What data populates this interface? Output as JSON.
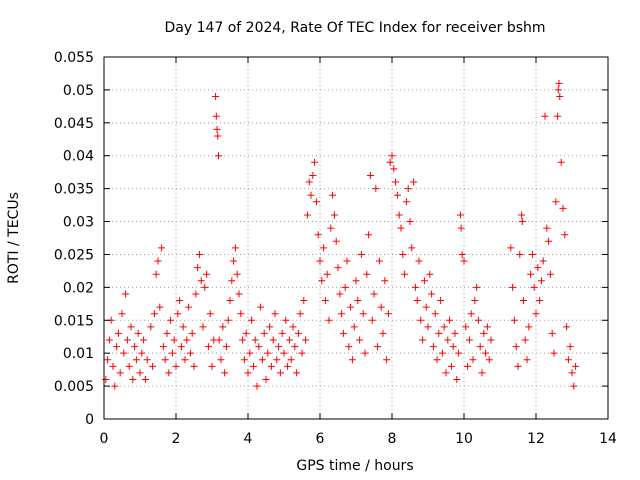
{
  "chart_data": {
    "type": "scatter",
    "title": "Day 147 of 2024, Rate Of TEC Index for receiver bshm",
    "xlabel": "GPS time / hours",
    "ylabel": "ROTI / TECUs",
    "xlim": [
      0,
      14
    ],
    "ylim": [
      0,
      0.055
    ],
    "xticks": [
      0,
      2,
      4,
      6,
      8,
      10,
      12,
      14
    ],
    "xtick_labels": [
      "0",
      "2",
      "4",
      "6",
      "8",
      "10",
      "12",
      "14"
    ],
    "yticks": [
      0,
      0.005,
      0.01,
      0.015,
      0.02,
      0.025,
      0.03,
      0.035,
      0.04,
      0.045,
      0.05,
      0.055
    ],
    "ytick_labels": [
      "0",
      "0.005",
      "0.01",
      "0.015",
      "0.02",
      "0.025",
      "0.03",
      "0.035",
      "0.04",
      "0.045",
      "0.05",
      "0.055"
    ],
    "grid": true,
    "marker": "+",
    "color": "#ff0000",
    "series": [
      {
        "name": "ROTI",
        "points": [
          [
            0.05,
            0.006
          ],
          [
            0.1,
            0.009
          ],
          [
            0.15,
            0.012
          ],
          [
            0.2,
            0.015
          ],
          [
            0.25,
            0.008
          ],
          [
            0.3,
            0.005
          ],
          [
            0.35,
            0.011
          ],
          [
            0.4,
            0.013
          ],
          [
            0.45,
            0.007
          ],
          [
            0.5,
            0.016
          ],
          [
            0.55,
            0.01
          ],
          [
            0.6,
            0.019
          ],
          [
            0.65,
            0.012
          ],
          [
            0.7,
            0.008
          ],
          [
            0.75,
            0.014
          ],
          [
            0.8,
            0.006
          ],
          [
            0.85,
            0.011
          ],
          [
            0.9,
            0.009
          ],
          [
            0.95,
            0.013
          ],
          [
            1.0,
            0.007
          ],
          [
            1.05,
            0.01
          ],
          [
            1.1,
            0.012
          ],
          [
            1.15,
            0.006
          ],
          [
            1.2,
            0.009
          ],
          [
            1.3,
            0.014
          ],
          [
            1.35,
            0.008
          ],
          [
            1.4,
            0.016
          ],
          [
            1.45,
            0.022
          ],
          [
            1.5,
            0.024
          ],
          [
            1.55,
            0.017
          ],
          [
            1.6,
            0.026
          ],
          [
            1.65,
            0.011
          ],
          [
            1.7,
            0.009
          ],
          [
            1.75,
            0.013
          ],
          [
            1.8,
            0.007
          ],
          [
            1.85,
            0.015
          ],
          [
            1.9,
            0.01
          ],
          [
            1.95,
            0.012
          ],
          [
            2.0,
            0.008
          ],
          [
            2.05,
            0.016
          ],
          [
            2.1,
            0.018
          ],
          [
            2.15,
            0.011
          ],
          [
            2.2,
            0.014
          ],
          [
            2.25,
            0.009
          ],
          [
            2.3,
            0.012
          ],
          [
            2.35,
            0.017
          ],
          [
            2.4,
            0.01
          ],
          [
            2.45,
            0.013
          ],
          [
            2.5,
            0.008
          ],
          [
            2.55,
            0.019
          ],
          [
            2.6,
            0.023
          ],
          [
            2.65,
            0.025
          ],
          [
            2.7,
            0.021
          ],
          [
            2.75,
            0.014
          ],
          [
            2.8,
            0.02
          ],
          [
            2.85,
            0.022
          ],
          [
            2.9,
            0.011
          ],
          [
            2.95,
            0.016
          ],
          [
            3.0,
            0.008
          ],
          [
            3.05,
            0.012
          ],
          [
            3.1,
            0.049
          ],
          [
            3.12,
            0.046
          ],
          [
            3.14,
            0.044
          ],
          [
            3.16,
            0.043
          ],
          [
            3.18,
            0.04
          ],
          [
            3.2,
            0.012
          ],
          [
            3.25,
            0.009
          ],
          [
            3.3,
            0.014
          ],
          [
            3.35,
            0.007
          ],
          [
            3.4,
            0.011
          ],
          [
            3.45,
            0.015
          ],
          [
            3.5,
            0.018
          ],
          [
            3.55,
            0.021
          ],
          [
            3.6,
            0.024
          ],
          [
            3.65,
            0.026
          ],
          [
            3.7,
            0.022
          ],
          [
            3.75,
            0.019
          ],
          [
            3.8,
            0.016
          ],
          [
            3.85,
            0.012
          ],
          [
            3.9,
            0.009
          ],
          [
            3.95,
            0.013
          ],
          [
            4.0,
            0.007
          ],
          [
            4.05,
            0.01
          ],
          [
            4.1,
            0.015
          ],
          [
            4.15,
            0.008
          ],
          [
            4.2,
            0.012
          ],
          [
            4.25,
            0.005
          ],
          [
            4.3,
            0.011
          ],
          [
            4.35,
            0.017
          ],
          [
            4.4,
            0.009
          ],
          [
            4.45,
            0.013
          ],
          [
            4.5,
            0.006
          ],
          [
            4.55,
            0.01
          ],
          [
            4.6,
            0.014
          ],
          [
            4.65,
            0.008
          ],
          [
            4.7,
            0.012
          ],
          [
            4.75,
            0.016
          ],
          [
            4.8,
            0.009
          ],
          [
            4.85,
            0.011
          ],
          [
            4.9,
            0.007
          ],
          [
            4.95,
            0.013
          ],
          [
            5.0,
            0.01
          ],
          [
            5.05,
            0.015
          ],
          [
            5.1,
            0.008
          ],
          [
            5.15,
            0.012
          ],
          [
            5.2,
            0.009
          ],
          [
            5.25,
            0.014
          ],
          [
            5.3,
            0.011
          ],
          [
            5.35,
            0.007
          ],
          [
            5.4,
            0.013
          ],
          [
            5.45,
            0.016
          ],
          [
            5.5,
            0.01
          ],
          [
            5.55,
            0.018
          ],
          [
            5.6,
            0.012
          ],
          [
            5.65,
            0.031
          ],
          [
            5.7,
            0.036
          ],
          [
            5.75,
            0.034
          ],
          [
            5.8,
            0.037
          ],
          [
            5.85,
            0.039
          ],
          [
            5.9,
            0.033
          ],
          [
            5.95,
            0.028
          ],
          [
            6.0,
            0.024
          ],
          [
            6.05,
            0.021
          ],
          [
            6.1,
            0.026
          ],
          [
            6.15,
            0.018
          ],
          [
            6.2,
            0.022
          ],
          [
            6.25,
            0.015
          ],
          [
            6.3,
            0.029
          ],
          [
            6.35,
            0.034
          ],
          [
            6.4,
            0.031
          ],
          [
            6.45,
            0.027
          ],
          [
            6.5,
            0.023
          ],
          [
            6.55,
            0.019
          ],
          [
            6.6,
            0.016
          ],
          [
            6.65,
            0.013
          ],
          [
            6.7,
            0.02
          ],
          [
            6.75,
            0.024
          ],
          [
            6.8,
            0.011
          ],
          [
            6.85,
            0.017
          ],
          [
            6.9,
            0.009
          ],
          [
            6.95,
            0.014
          ],
          [
            7.0,
            0.021
          ],
          [
            7.05,
            0.018
          ],
          [
            7.1,
            0.012
          ],
          [
            7.15,
            0.025
          ],
          [
            7.2,
            0.016
          ],
          [
            7.25,
            0.01
          ],
          [
            7.3,
            0.022
          ],
          [
            7.35,
            0.028
          ],
          [
            7.4,
            0.037
          ],
          [
            7.45,
            0.015
          ],
          [
            7.5,
            0.019
          ],
          [
            7.55,
            0.035
          ],
          [
            7.6,
            0.011
          ],
          [
            7.65,
            0.024
          ],
          [
            7.7,
            0.017
          ],
          [
            7.75,
            0.013
          ],
          [
            7.8,
            0.021
          ],
          [
            7.85,
            0.009
          ],
          [
            7.9,
            0.016
          ],
          [
            7.95,
            0.039
          ],
          [
            8.0,
            0.04
          ],
          [
            8.05,
            0.038
          ],
          [
            8.1,
            0.036
          ],
          [
            8.15,
            0.034
          ],
          [
            8.2,
            0.031
          ],
          [
            8.25,
            0.029
          ],
          [
            8.3,
            0.025
          ],
          [
            8.35,
            0.022
          ],
          [
            8.4,
            0.033
          ],
          [
            8.45,
            0.035
          ],
          [
            8.5,
            0.03
          ],
          [
            8.55,
            0.026
          ],
          [
            8.6,
            0.036
          ],
          [
            8.65,
            0.02
          ],
          [
            8.7,
            0.018
          ],
          [
            8.75,
            0.024
          ],
          [
            8.8,
            0.015
          ],
          [
            8.85,
            0.012
          ],
          [
            8.9,
            0.021
          ],
          [
            8.95,
            0.017
          ],
          [
            9.0,
            0.014
          ],
          [
            9.05,
            0.022
          ],
          [
            9.1,
            0.019
          ],
          [
            9.15,
            0.011
          ],
          [
            9.2,
            0.016
          ],
          [
            9.25,
            0.009
          ],
          [
            9.3,
            0.013
          ],
          [
            9.35,
            0.018
          ],
          [
            9.4,
            0.01
          ],
          [
            9.45,
            0.014
          ],
          [
            9.5,
            0.007
          ],
          [
            9.55,
            0.012
          ],
          [
            9.6,
            0.015
          ],
          [
            9.65,
            0.008
          ],
          [
            9.7,
            0.011
          ],
          [
            9.75,
            0.013
          ],
          [
            9.8,
            0.006
          ],
          [
            9.85,
            0.01
          ],
          [
            9.9,
            0.031
          ],
          [
            9.92,
            0.029
          ],
          [
            9.95,
            0.025
          ],
          [
            10.0,
            0.024
          ],
          [
            10.05,
            0.014
          ],
          [
            10.1,
            0.008
          ],
          [
            10.15,
            0.012
          ],
          [
            10.2,
            0.016
          ],
          [
            10.25,
            0.009
          ],
          [
            10.3,
            0.018
          ],
          [
            10.35,
            0.02
          ],
          [
            10.4,
            0.015
          ],
          [
            10.45,
            0.011
          ],
          [
            10.5,
            0.007
          ],
          [
            10.55,
            0.013
          ],
          [
            10.6,
            0.01
          ],
          [
            10.65,
            0.014
          ],
          [
            10.7,
            0.009
          ],
          [
            10.75,
            0.012
          ],
          [
            11.3,
            0.026
          ],
          [
            11.35,
            0.02
          ],
          [
            11.4,
            0.015
          ],
          [
            11.45,
            0.011
          ],
          [
            11.5,
            0.008
          ],
          [
            11.55,
            0.025
          ],
          [
            11.6,
            0.031
          ],
          [
            11.62,
            0.03
          ],
          [
            11.65,
            0.018
          ],
          [
            11.7,
            0.012
          ],
          [
            11.75,
            0.009
          ],
          [
            11.8,
            0.014
          ],
          [
            11.85,
            0.022
          ],
          [
            11.9,
            0.025
          ],
          [
            11.95,
            0.02
          ],
          [
            12.0,
            0.016
          ],
          [
            12.05,
            0.023
          ],
          [
            12.1,
            0.018
          ],
          [
            12.15,
            0.021
          ],
          [
            12.2,
            0.024
          ],
          [
            12.25,
            0.046
          ],
          [
            12.3,
            0.029
          ],
          [
            12.35,
            0.027
          ],
          [
            12.4,
            0.022
          ],
          [
            12.45,
            0.013
          ],
          [
            12.5,
            0.01
          ],
          [
            12.55,
            0.033
          ],
          [
            12.6,
            0.046
          ],
          [
            12.62,
            0.05
          ],
          [
            12.64,
            0.051
          ],
          [
            12.66,
            0.049
          ],
          [
            12.7,
            0.039
          ],
          [
            12.75,
            0.032
          ],
          [
            12.8,
            0.028
          ],
          [
            12.85,
            0.014
          ],
          [
            12.9,
            0.009
          ],
          [
            12.95,
            0.011
          ],
          [
            13.0,
            0.007
          ],
          [
            13.05,
            0.005
          ],
          [
            13.1,
            0.008
          ]
        ]
      }
    ]
  }
}
